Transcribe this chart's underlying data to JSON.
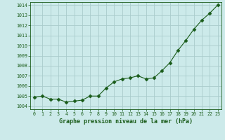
{
  "x": [
    0,
    1,
    2,
    3,
    4,
    5,
    6,
    7,
    8,
    9,
    10,
    11,
    12,
    13,
    14,
    15,
    16,
    17,
    18,
    19,
    20,
    21,
    22,
    23
  ],
  "y": [
    1004.9,
    1005.0,
    1004.7,
    1004.7,
    1004.4,
    1004.5,
    1004.6,
    1005.0,
    1005.0,
    1005.8,
    1006.4,
    1006.7,
    1006.8,
    1007.0,
    1006.7,
    1006.8,
    1007.5,
    1008.3,
    1009.5,
    1010.5,
    1011.6,
    1012.5,
    1013.2,
    1014.0
  ],
  "line_color": "#1a5c1a",
  "marker": "D",
  "marker_size": 2.5,
  "bg_color": "#cceaea",
  "grid_color": "#aacccc",
  "xlabel": "Graphe pression niveau de la mer (hPa)",
  "xlabel_color": "#1a5c1a",
  "tick_color": "#1a5c1a",
  "ylim": [
    1003.7,
    1014.3
  ],
  "yticks": [
    1004,
    1005,
    1006,
    1007,
    1008,
    1009,
    1010,
    1011,
    1012,
    1013,
    1014
  ],
  "xlim": [
    -0.5,
    23.5
  ],
  "xticks": [
    0,
    1,
    2,
    3,
    4,
    5,
    6,
    7,
    8,
    9,
    10,
    11,
    12,
    13,
    14,
    15,
    16,
    17,
    18,
    19,
    20,
    21,
    22,
    23
  ]
}
